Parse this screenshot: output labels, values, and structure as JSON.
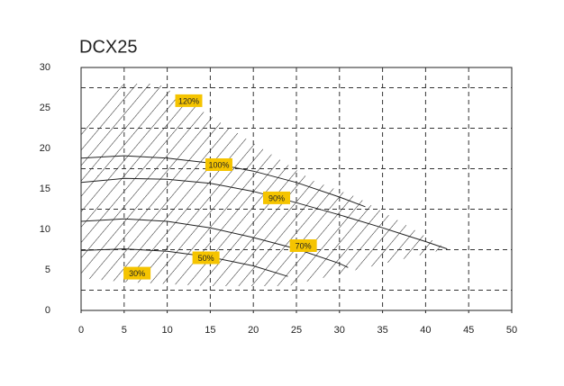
{
  "chart_data": {
    "type": "line",
    "title": "DCX25",
    "xlim": [
      0,
      50
    ],
    "xticks": [
      0,
      5,
      10,
      15,
      20,
      25,
      30,
      35,
      40,
      45,
      50
    ],
    "ylim": [
      0,
      30
    ],
    "yticks": [
      0,
      5,
      10,
      15,
      20,
      25,
      30
    ],
    "xgrid": [
      5,
      10,
      15,
      20,
      25,
      30,
      35,
      40,
      45
    ],
    "ygrid": [
      2.5,
      7.5,
      12.5,
      17.5,
      22.5,
      27.5
    ],
    "color": "#222222",
    "series": [
      {
        "x": [
          0,
          5,
          10,
          15,
          20,
          25,
          30,
          33
        ],
        "values": [
          18.8,
          19.1,
          18.8,
          18.2,
          17.2,
          15.8,
          14,
          12.8
        ]
      },
      {
        "x": [
          0,
          5,
          10,
          15,
          20,
          25,
          30,
          35,
          40,
          42.5
        ],
        "values": [
          15.8,
          16.3,
          16.2,
          15.7,
          14.7,
          13.3,
          11.8,
          10.2,
          8.5,
          7.6
        ]
      },
      {
        "x": [
          0,
          5,
          10,
          15,
          20,
          25,
          30,
          31
        ],
        "values": [
          11,
          11.3,
          11,
          10.2,
          9,
          7.6,
          5.8,
          5.3
        ]
      },
      {
        "x": [
          0,
          5,
          10,
          15,
          20,
          24
        ],
        "values": [
          7.4,
          7.6,
          7.3,
          6.6,
          5.5,
          4.2
        ]
      }
    ],
    "annotations": [
      "120%",
      "100%",
      "90%",
      "70%",
      "50%",
      "30%"
    ]
  }
}
